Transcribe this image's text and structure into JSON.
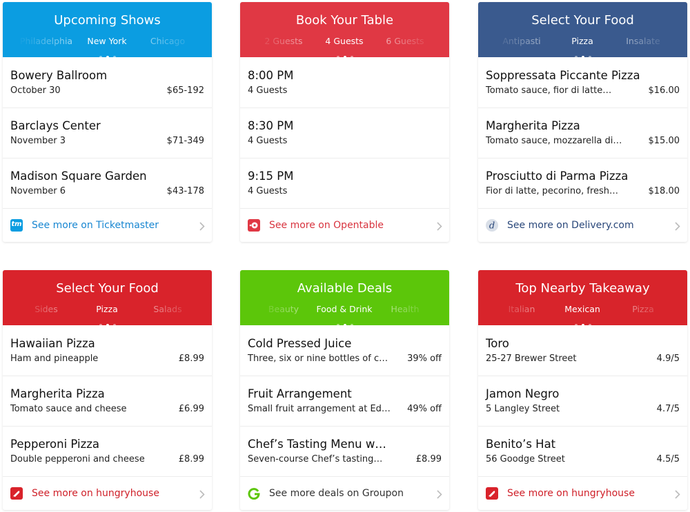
{
  "cards": [
    {
      "title": "Upcoming Shows",
      "tabs": [
        "Philadelphia",
        "New York",
        "Chicago"
      ],
      "rows": [
        {
          "title": "Bowery Ballroom",
          "subtitle": "October 30",
          "value": "$65-192"
        },
        {
          "title": "Barclays Center",
          "subtitle": "November 3",
          "value": "$71-349"
        },
        {
          "title": "Madison Square Garden",
          "subtitle": "November 6",
          "value": "$43-178"
        }
      ],
      "footer": "See more on Ticketmaster",
      "icon_text": "tm"
    },
    {
      "title": "Book Your Table",
      "tabs": [
        "2 Guests",
        "4 Guests",
        "6 Guests"
      ],
      "rows": [
        {
          "title": "8:00 PM",
          "subtitle": "4 Guests",
          "value": ""
        },
        {
          "title": "8:30 PM",
          "subtitle": "4 Guests",
          "value": ""
        },
        {
          "title": "9:15 PM",
          "subtitle": "4 Guests",
          "value": ""
        }
      ],
      "footer": "See more on Opentable"
    },
    {
      "title": "Select Your Food",
      "tabs": [
        "Antipasti",
        "Pizza",
        "Insalate"
      ],
      "rows": [
        {
          "title": "Soppressata Piccante Pizza",
          "subtitle": "Tomato sauce, fior di latte…",
          "value": "$16.00"
        },
        {
          "title": "Margherita Pizza",
          "subtitle": "Tomato sauce, mozzarella di…",
          "value": "$15.00"
        },
        {
          "title": "Prosciutto di Parma Pizza",
          "subtitle": "Fior di latte, pecorino, fresh…",
          "value": "$18.00"
        }
      ],
      "footer": "See more on Delivery.com"
    },
    {
      "title": "Select Your Food",
      "tabs": [
        "Sides",
        "Pizza",
        "Salads"
      ],
      "rows": [
        {
          "title": "Hawaiian Pizza",
          "subtitle": "Ham and pineapple",
          "value": "£8.99"
        },
        {
          "title": "Margherita Pizza",
          "subtitle": "Tomato sauce and cheese",
          "value": "£6.99"
        },
        {
          "title": "Pepperoni Pizza",
          "subtitle": "Double pepperoni and cheese",
          "value": "£8.99"
        }
      ],
      "footer": "See more on hungryhouse"
    },
    {
      "title": "Available Deals",
      "tabs": [
        "Beauty",
        "Food & Drink",
        "Health"
      ],
      "rows": [
        {
          "title": "Cold Pressed Juice",
          "subtitle": "Three, six or nine bottles of c…",
          "value": "39% off"
        },
        {
          "title": "Fruit Arrangement",
          "subtitle": "Small fruit arrangement at Ed…",
          "value": "49% off"
        },
        {
          "title": "Chef’s Tasting Menu w…",
          "subtitle": "Seven-course Chef’s tasting…",
          "value": "£8.99"
        }
      ],
      "footer": "See more deals on Groupon"
    },
    {
      "title": "Top Nearby Takeaway",
      "tabs": [
        "Italian",
        "Mexican",
        "Pizza"
      ],
      "rows": [
        {
          "title": "Toro",
          "subtitle": "25-27 Brewer Street",
          "value": "4.9/5"
        },
        {
          "title": "Jamon Negro",
          "subtitle": "5 Langley Street",
          "value": "4.7/5"
        },
        {
          "title": "Benito’s Hat",
          "subtitle": "56 Goodge Street",
          "value": "4.5/5"
        }
      ],
      "footer": "See more on hungryhouse"
    }
  ]
}
